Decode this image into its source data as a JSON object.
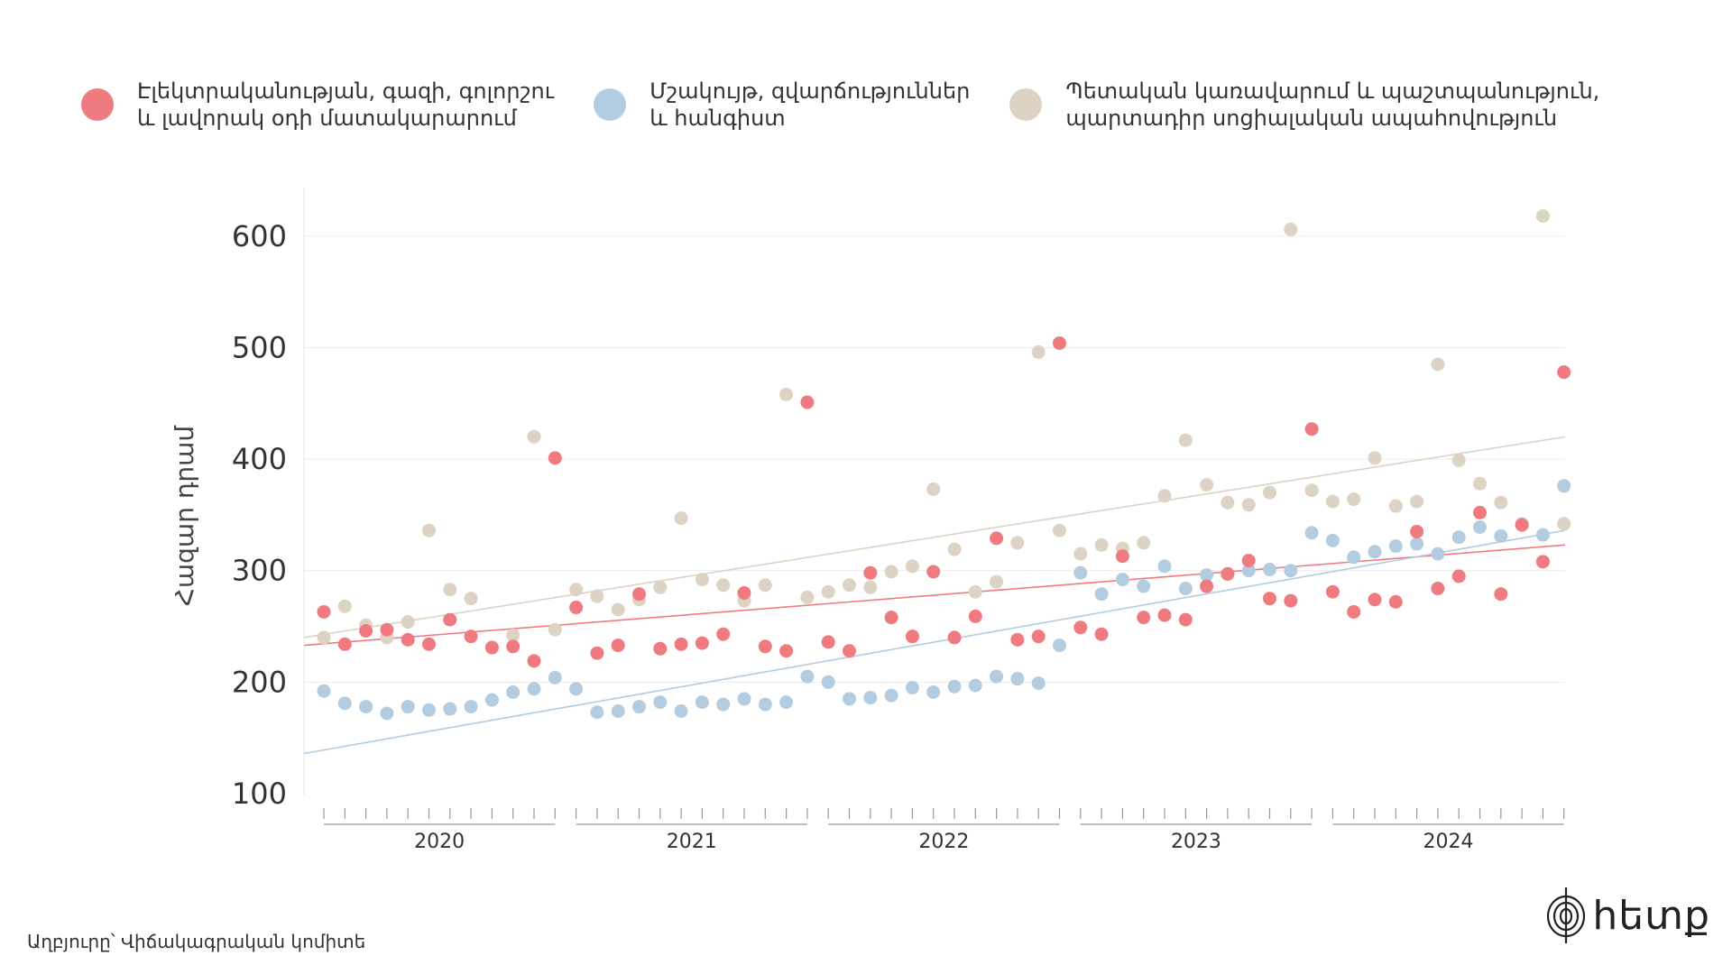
{
  "legend": [
    {
      "label": "Էլեկտրականության, գազի, գոլորշու\nև լավորակ օդի մատակարարում",
      "color": "#ef7b80"
    },
    {
      "label": "Մշակույթ, զվարճություններ\nև հանգիստ",
      "color": "#b3cce0"
    },
    {
      "label": "Պետական կառավարում և պաշտպանություն,\nպարտադիր սոցիալական ապահովություն",
      "color": "#dcd3c4"
    }
  ],
  "footer": {
    "source": "Աղբյուրը՝ Վիճակագրական կոմիտե",
    "logo_text": "hետք",
    "logo_icon": "fingerprint-icon"
  },
  "chart_data": {
    "type": "scatter",
    "ylabel": "Հազար դրամ",
    "ylim": [
      100,
      650
    ],
    "yticks": [
      100,
      200,
      300,
      400,
      500,
      600
    ],
    "grid": true,
    "years": [
      "2020",
      "2021",
      "2022",
      "2023",
      "2024"
    ],
    "months_per_year": 12,
    "series": [
      {
        "name": "Էլեկտրականության, գազի, գոլորշու և լավորակ օդի մատակարարում",
        "color": "#ef7b80",
        "trend": [
          233,
          323
        ],
        "values": [
          263,
          234,
          246,
          247,
          238,
          234,
          256,
          241,
          231,
          232,
          219,
          401,
          267,
          226,
          233,
          279,
          230,
          234,
          235,
          243,
          280,
          232,
          228,
          451,
          236,
          228,
          298,
          258,
          241,
          299,
          240,
          259,
          329,
          238,
          241,
          504,
          249,
          243,
          313,
          258,
          260,
          256,
          286,
          297,
          309,
          275,
          273,
          427,
          281,
          263,
          274,
          272,
          335,
          284,
          295,
          352,
          279,
          341,
          308,
          478
        ]
      },
      {
        "name": "Մշակույթ, զվարճություններ և հանգիստ",
        "color": "#b3cce0",
        "trend": [
          136,
          336
        ],
        "values": [
          192,
          181,
          178,
          172,
          178,
          175,
          176,
          178,
          184,
          191,
          194,
          204,
          194,
          173,
          174,
          178,
          182,
          174,
          182,
          180,
          185,
          180,
          182,
          205,
          200,
          185,
          186,
          188,
          195,
          191,
          196,
          197,
          205,
          203,
          199,
          233,
          298,
          279,
          292,
          286,
          304,
          284,
          296,
          297,
          300,
          301,
          300,
          334,
          327,
          312,
          317,
          322,
          324,
          315,
          330,
          339,
          331,
          341,
          332,
          376
        ]
      },
      {
        "name": "Պետական կառավարում և պաշտպանություն, պարտադիր սոցիալական ապահովություն",
        "color": "#dcd3c4",
        "trend": [
          240,
          420
        ],
        "values": [
          240,
          268,
          251,
          240,
          254,
          336,
          283,
          275,
          231,
          242,
          420,
          247,
          283,
          277,
          265,
          274,
          285,
          347,
          292,
          287,
          273,
          287,
          458,
          276,
          281,
          287,
          285,
          299,
          304,
          373,
          319,
          281,
          290,
          325,
          496,
          336,
          315,
          323,
          320,
          325,
          367,
          417,
          377,
          361,
          359,
          370,
          606,
          372,
          362,
          364,
          401,
          358,
          362,
          485,
          399,
          378,
          361,
          342,
          618,
          342
        ]
      }
    ]
  }
}
